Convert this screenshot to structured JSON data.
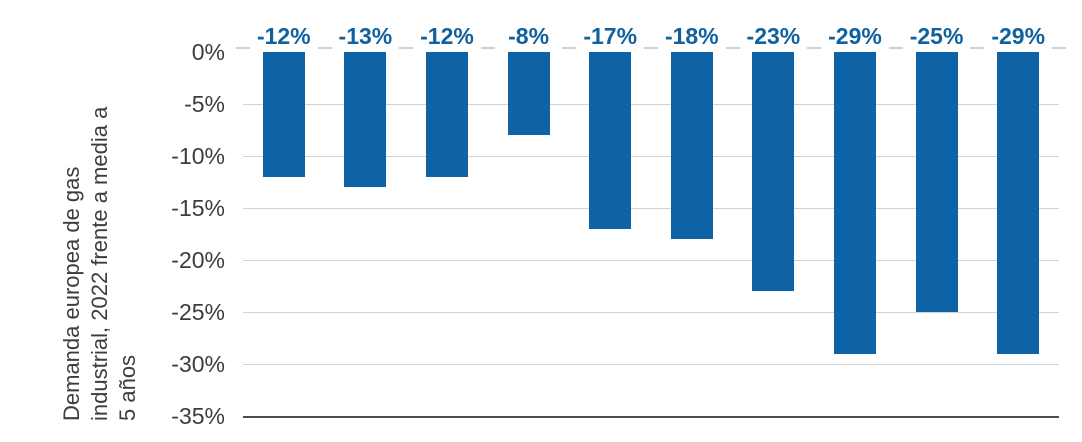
{
  "chart_data": {
    "type": "bar",
    "title": "",
    "ylabel": "Demanda europea de gas industrial, 2022 frente a media a 5 años",
    "ylabel_lines": [
      "Demanda europea de gas",
      "industrial, 2022 frente a media a",
      "5 años"
    ],
    "values": [
      -12,
      -13,
      -12,
      -8,
      -17,
      -18,
      -23,
      -29,
      -25,
      -29
    ],
    "bar_labels": [
      "-12%",
      "-13%",
      "-12%",
      "-8%",
      "-17%",
      "-18%",
      "-23%",
      "-29%",
      "-25%",
      "-29%"
    ],
    "y_tick_labels": [
      "0%",
      "-5%",
      "-10%",
      "-15%",
      "-20%",
      "-25%",
      "-30%",
      "-35%"
    ],
    "y_tick_values": [
      0,
      -5,
      -10,
      -15,
      -20,
      -25,
      -30,
      -35
    ],
    "ylim": [
      -35,
      0
    ],
    "grid": "horizontal-gridlines-on",
    "legend": "none",
    "orientation": "vertical-columns"
  },
  "colors": {
    "bar": "#0e63a6",
    "value_label": "#11619f",
    "grid_line": "#d2d2d2",
    "zero_tick": "#d0d0d0",
    "axis_line": "#4d4d4d",
    "tick_text": "#3c3c3c",
    "axis_title_text": "#3d3d3d",
    "background": "#ffffff"
  }
}
